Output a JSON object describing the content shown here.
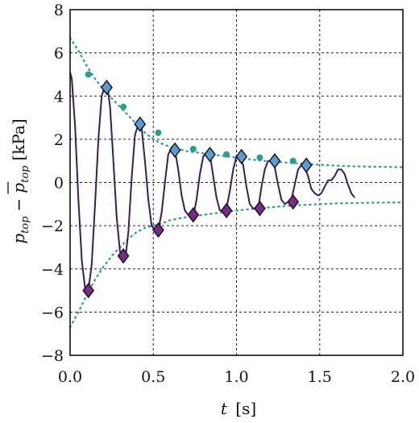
{
  "chart_data": {
    "type": "line",
    "title": "",
    "xlabel_var": "t",
    "xlabel_unit": "[s]",
    "ylabel_var": "p",
    "ylabel_sub": "top",
    "ylabel_minus": "−",
    "ylabel_unit": "[kPa]",
    "xlim": [
      0,
      2
    ],
    "ylim": [
      -8,
      8
    ],
    "x_ticks": [
      0.0,
      0.5,
      1.0,
      1.5,
      2.0
    ],
    "x_tick_labels": [
      "0.0",
      "0.5",
      "1.0",
      "1.5",
      "2.0"
    ],
    "y_ticks": [
      -8,
      -6,
      -4,
      -2,
      0,
      2,
      4,
      6,
      8
    ],
    "y_tick_labels": [
      "−8",
      "−6",
      "−4",
      "−2",
      "0",
      "2",
      "4",
      "6",
      "8"
    ],
    "grid": true,
    "colors": {
      "signal": "#3d1a5e",
      "envelope": "#2a9d8f",
      "peak_marker": "#5b9bd5",
      "trough_marker": "#7b2a8a",
      "marker_edge": "#111111"
    },
    "series": [
      {
        "kind": "signal",
        "x": [
          0.0,
          0.01,
          0.03,
          0.05,
          0.07,
          0.09,
          0.11,
          0.13,
          0.15,
          0.17,
          0.19,
          0.21,
          0.225,
          0.24,
          0.26,
          0.28,
          0.3,
          0.32,
          0.335,
          0.35,
          0.37,
          0.39,
          0.41,
          0.43,
          0.45,
          0.47,
          0.49,
          0.51,
          0.53,
          0.55,
          0.57,
          0.59,
          0.61,
          0.63,
          0.65,
          0.67,
          0.69,
          0.71,
          0.73,
          0.745,
          0.76,
          0.78,
          0.8,
          0.82,
          0.84,
          0.86,
          0.88,
          0.9,
          0.92,
          0.94,
          0.96,
          0.98,
          1.0,
          1.02,
          1.04,
          1.06,
          1.08,
          1.1,
          1.12,
          1.135,
          1.15,
          1.17,
          1.19,
          1.21,
          1.23,
          1.25,
          1.27,
          1.29,
          1.31,
          1.33,
          1.35,
          1.37,
          1.39,
          1.41,
          1.43,
          1.45,
          1.47,
          1.49,
          1.51,
          1.53,
          1.55,
          1.57,
          1.59,
          1.61,
          1.63,
          1.65,
          1.67,
          1.69,
          1.71
        ],
        "y": [
          5.1,
          4.8,
          2.6,
          -0.8,
          -3.6,
          -4.9,
          -5.0,
          -3.8,
          -1.0,
          2.0,
          4.0,
          4.5,
          4.4,
          3.5,
          1.0,
          -1.6,
          -3.2,
          -3.4,
          -3.3,
          -2.3,
          0.2,
          2.2,
          2.7,
          2.5,
          1.0,
          -0.8,
          -2.0,
          -2.2,
          -2.2,
          -1.4,
          0.0,
          1.3,
          1.6,
          1.5,
          0.6,
          -0.6,
          -1.3,
          -1.5,
          -1.5,
          -1.4,
          -0.8,
          0.4,
          1.2,
          1.4,
          1.3,
          0.3,
          -0.7,
          -1.3,
          -1.3,
          -1.2,
          -0.4,
          0.6,
          1.2,
          1.2,
          0.8,
          -0.2,
          -1.0,
          -1.2,
          -1.2,
          -1.0,
          -0.2,
          0.6,
          1.0,
          1.0,
          0.7,
          -0.1,
          -0.8,
          -1.0,
          -0.9,
          -0.8,
          -0.1,
          0.6,
          0.8,
          0.7,
          0.3,
          -0.3,
          -0.5,
          -0.6,
          -0.5,
          -0.2,
          0.1,
          0.1,
          0.3,
          0.6,
          0.6,
          0.4,
          -0.1,
          -0.5,
          -0.7
        ]
      },
      {
        "kind": "envelope_upper",
        "x": [
          0.0,
          0.05,
          0.1,
          0.15,
          0.2,
          0.25,
          0.3,
          0.35,
          0.4,
          0.45,
          0.5,
          0.55,
          0.6,
          0.7,
          0.8,
          0.9,
          1.0,
          1.1,
          1.2,
          1.3,
          1.4,
          1.5,
          1.6,
          1.7,
          1.8,
          1.9,
          2.0
        ],
        "y": [
          6.7,
          6.1,
          5.4,
          4.8,
          4.3,
          3.9,
          3.5,
          3.1,
          2.7,
          2.3,
          2.0,
          1.8,
          1.65,
          1.45,
          1.35,
          1.25,
          1.15,
          1.05,
          0.98,
          0.92,
          0.87,
          0.82,
          0.78,
          0.75,
          0.73,
          0.72,
          0.71
        ]
      },
      {
        "kind": "envelope_lower",
        "x": [
          0.0,
          0.05,
          0.1,
          0.15,
          0.2,
          0.25,
          0.3,
          0.35,
          0.4,
          0.45,
          0.5,
          0.55,
          0.6,
          0.7,
          0.8,
          0.9,
          1.0,
          1.1,
          1.2,
          1.3,
          1.4,
          1.5,
          1.6,
          1.7,
          1.8,
          1.9,
          2.0
        ],
        "y": [
          -6.7,
          -6.0,
          -5.2,
          -4.5,
          -3.9,
          -3.4,
          -3.0,
          -2.6,
          -2.3,
          -2.1,
          -2.0,
          -1.9,
          -1.75,
          -1.6,
          -1.5,
          -1.4,
          -1.3,
          -1.22,
          -1.15,
          -1.09,
          -1.04,
          -1.0,
          -0.97,
          -0.95,
          -0.94,
          -0.93,
          -0.92
        ]
      },
      {
        "kind": "peak_markers",
        "x": [
          0.22,
          0.42,
          0.63,
          0.84,
          1.03,
          1.23,
          1.42
        ],
        "y": [
          4.4,
          2.7,
          1.5,
          1.3,
          1.2,
          1.0,
          0.8
        ]
      },
      {
        "kind": "trough_markers",
        "x": [
          0.11,
          0.32,
          0.53,
          0.74,
          0.94,
          1.14,
          1.34
        ],
        "y": [
          -5.0,
          -3.4,
          -2.2,
          -1.5,
          -1.3,
          -1.2,
          -0.9
        ]
      },
      {
        "kind": "envelope_points",
        "x": [
          0.11,
          0.32,
          0.53,
          0.74,
          0.94,
          1.14,
          1.34
        ],
        "y": [
          5.0,
          3.5,
          2.3,
          1.55,
          1.3,
          1.15,
          1.0
        ]
      }
    ]
  }
}
